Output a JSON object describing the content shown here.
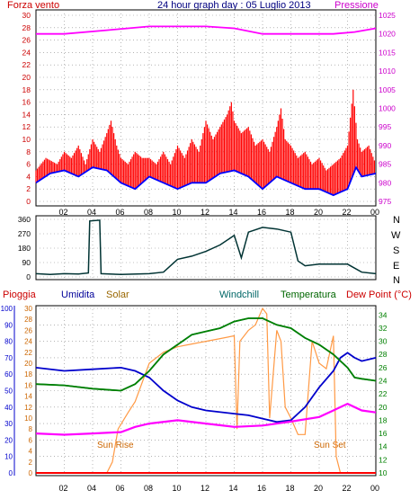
{
  "top_labels": {
    "left": "Forza vento",
    "title": "24 hour graph day : 05 Luglio 2013",
    "right": "Pressione"
  },
  "middle_labels": [
    "N",
    "W",
    "S",
    "E",
    "N"
  ],
  "bottom_legend": {
    "pioggia": "Pioggia",
    "umidita": "Umidita",
    "solar": "Solar",
    "windchill": "Windchill",
    "temperatura": "Temperatura",
    "dewpoint": "Dew Point (°C)"
  },
  "annotations": {
    "sunrise": "Sun Rise",
    "sunset": "Sun Set"
  },
  "colors": {
    "wind": "#ff0000",
    "gust_avg": "#0000ff",
    "pressure": "#ff00ff",
    "direction": "#003333",
    "humidity": "#0000cc",
    "solar": "#ff9944",
    "windchill": "#008080",
    "temperature": "#008000",
    "dewpoint": "#ff00ff",
    "rain": "#ff0000",
    "title": "#000080"
  },
  "chart_data": [
    {
      "type": "line",
      "name": "wind-pressure",
      "x_ticks": [
        "02",
        "04",
        "06",
        "08",
        "10",
        "12",
        "14",
        "16",
        "18",
        "20",
        "22",
        "00"
      ],
      "y_left_ticks": [
        0,
        2,
        4,
        6,
        8,
        10,
        12,
        14,
        16,
        18,
        20,
        22,
        24,
        26,
        28,
        30
      ],
      "y_right_ticks": [
        975,
        980,
        985,
        990,
        995,
        1000,
        1005,
        1010,
        1015,
        1020,
        1025
      ],
      "y_left_range": [
        0,
        30
      ],
      "y_right_range": [
        975,
        1025
      ],
      "pressure": [
        [
          0,
          1020
        ],
        [
          2,
          1020
        ],
        [
          5,
          1021
        ],
        [
          8,
          1022
        ],
        [
          12,
          1022
        ],
        [
          14,
          1021.5
        ],
        [
          16,
          1020
        ],
        [
          18,
          1020
        ],
        [
          21,
          1020
        ],
        [
          22.5,
          1020.5
        ],
        [
          24,
          1021.5
        ]
      ],
      "wind_avg": [
        [
          0,
          3
        ],
        [
          1,
          4.5
        ],
        [
          2,
          5
        ],
        [
          3,
          4
        ],
        [
          4,
          5.5
        ],
        [
          5,
          5
        ],
        [
          6,
          3
        ],
        [
          7,
          2
        ],
        [
          8,
          4
        ],
        [
          9,
          3
        ],
        [
          10,
          2
        ],
        [
          11,
          3
        ],
        [
          12,
          3
        ],
        [
          13,
          4.5
        ],
        [
          14,
          5
        ],
        [
          15,
          4
        ],
        [
          16,
          2
        ],
        [
          17,
          4
        ],
        [
          18,
          3
        ],
        [
          19,
          2
        ],
        [
          20,
          2
        ],
        [
          21,
          1
        ],
        [
          22,
          2
        ],
        [
          22.6,
          5.5
        ],
        [
          23,
          4
        ],
        [
          24,
          4.5
        ]
      ],
      "wind_gust": [
        [
          0,
          5
        ],
        [
          0.7,
          7
        ],
        [
          1.5,
          6
        ],
        [
          2,
          8
        ],
        [
          2.5,
          7
        ],
        [
          3,
          9
        ],
        [
          3.5,
          6
        ],
        [
          4,
          10
        ],
        [
          4.5,
          8
        ],
        [
          5,
          11
        ],
        [
          5.3,
          13
        ],
        [
          5.7,
          9
        ],
        [
          6,
          7
        ],
        [
          6.5,
          6
        ],
        [
          7,
          8
        ],
        [
          7.5,
          7
        ],
        [
          8,
          7
        ],
        [
          8.5,
          6
        ],
        [
          9,
          8
        ],
        [
          9.5,
          6
        ],
        [
          10,
          9
        ],
        [
          10.5,
          7
        ],
        [
          11,
          10
        ],
        [
          11.5,
          8
        ],
        [
          12,
          13
        ],
        [
          12.5,
          10
        ],
        [
          13,
          12
        ],
        [
          13.5,
          14
        ],
        [
          13.8,
          16
        ],
        [
          14,
          13
        ],
        [
          14.5,
          11
        ],
        [
          15,
          12
        ],
        [
          15.5,
          9
        ],
        [
          16,
          10
        ],
        [
          16.5,
          8
        ],
        [
          17,
          12
        ],
        [
          17.3,
          15
        ],
        [
          17.6,
          10
        ],
        [
          18,
          9
        ],
        [
          18.5,
          7
        ],
        [
          19,
          8
        ],
        [
          19.5,
          6
        ],
        [
          20,
          7
        ],
        [
          20.5,
          5
        ],
        [
          21,
          6
        ],
        [
          21.5,
          7
        ],
        [
          22,
          9
        ],
        [
          22.4,
          18
        ],
        [
          22.7,
          10
        ],
        [
          23,
          8
        ],
        [
          23.5,
          9
        ],
        [
          24,
          6
        ]
      ]
    },
    {
      "type": "line",
      "name": "wind-direction",
      "y_ticks": [
        0,
        90,
        180,
        270,
        360
      ],
      "y_range": [
        0,
        360
      ],
      "direction": [
        [
          0,
          20
        ],
        [
          1,
          15
        ],
        [
          2,
          20
        ],
        [
          3,
          18
        ],
        [
          3.7,
          25
        ],
        [
          3.8,
          350
        ],
        [
          4.5,
          355
        ],
        [
          4.6,
          20
        ],
        [
          6,
          15
        ],
        [
          8,
          20
        ],
        [
          9,
          30
        ],
        [
          10,
          110
        ],
        [
          11,
          130
        ],
        [
          12,
          160
        ],
        [
          13,
          200
        ],
        [
          14,
          260
        ],
        [
          14.5,
          120
        ],
        [
          15,
          280
        ],
        [
          16,
          310
        ],
        [
          17,
          300
        ],
        [
          18,
          280
        ],
        [
          18.5,
          100
        ],
        [
          19,
          70
        ],
        [
          20,
          80
        ],
        [
          22,
          80
        ],
        [
          23,
          30
        ],
        [
          24,
          20
        ]
      ]
    },
    {
      "type": "line",
      "name": "temperature-humidity",
      "y_left_ticks": [
        0,
        10,
        20,
        30,
        40,
        50,
        60,
        70,
        80,
        90,
        100
      ],
      "y_left2_ticks": [
        0,
        2,
        4,
        6,
        8,
        10,
        12,
        14,
        16,
        18,
        20,
        22,
        24,
        26,
        28,
        30
      ],
      "y_right_ticks": [
        10,
        12,
        14,
        16,
        18,
        20,
        22,
        24,
        26,
        28,
        30,
        32,
        34
      ],
      "humidity_range": [
        0,
        100
      ],
      "temp_range": [
        10,
        35
      ],
      "humidity": [
        [
          0,
          64
        ],
        [
          2,
          62
        ],
        [
          4,
          63
        ],
        [
          6,
          64
        ],
        [
          7,
          62
        ],
        [
          8,
          58
        ],
        [
          9,
          50
        ],
        [
          10,
          44
        ],
        [
          11,
          40
        ],
        [
          12,
          38
        ],
        [
          14,
          36
        ],
        [
          15,
          35
        ],
        [
          16,
          33
        ],
        [
          17,
          31
        ],
        [
          18,
          32
        ],
        [
          19,
          40
        ],
        [
          20,
          52
        ],
        [
          21,
          62
        ],
        [
          21.5,
          70
        ],
        [
          22,
          73
        ],
        [
          22.5,
          70
        ],
        [
          23,
          68
        ],
        [
          24,
          70
        ]
      ],
      "temperature": [
        [
          0,
          23.5
        ],
        [
          2,
          23.3
        ],
        [
          4,
          22.8
        ],
        [
          6,
          22.5
        ],
        [
          7,
          23.5
        ],
        [
          8,
          25.5
        ],
        [
          9,
          28
        ],
        [
          10,
          29.5
        ],
        [
          11,
          31
        ],
        [
          12,
          31.5
        ],
        [
          13,
          32
        ],
        [
          14,
          33
        ],
        [
          15,
          33.5
        ],
        [
          16,
          33.5
        ],
        [
          17,
          32.5
        ],
        [
          18,
          32
        ],
        [
          19,
          30.5
        ],
        [
          20,
          29.5
        ],
        [
          21,
          28
        ],
        [
          22,
          26
        ],
        [
          22.5,
          24.5
        ],
        [
          23,
          24.3
        ],
        [
          24,
          24
        ]
      ],
      "windchill": [
        [
          0,
          23.5
        ],
        [
          2,
          23.3
        ],
        [
          4,
          22.8
        ],
        [
          6,
          22.5
        ],
        [
          7,
          23.5
        ],
        [
          8,
          25.5
        ],
        [
          9,
          28
        ],
        [
          10,
          29.5
        ],
        [
          11,
          31
        ],
        [
          12,
          31.5
        ],
        [
          13,
          32
        ],
        [
          14,
          33
        ],
        [
          15,
          33.5
        ],
        [
          16,
          33.5
        ],
        [
          17,
          32.5
        ],
        [
          18,
          32
        ],
        [
          19,
          30.5
        ],
        [
          20,
          29.5
        ],
        [
          21,
          28
        ],
        [
          22,
          26
        ],
        [
          22.5,
          24.5
        ],
        [
          23,
          24.3
        ],
        [
          24,
          24
        ]
      ],
      "dewpoint": [
        [
          0,
          16
        ],
        [
          2,
          15.8
        ],
        [
          4,
          16
        ],
        [
          6,
          16.2
        ],
        [
          7,
          17
        ],
        [
          8,
          17.5
        ],
        [
          10,
          18
        ],
        [
          12,
          17.5
        ],
        [
          14,
          17
        ],
        [
          16,
          17.2
        ],
        [
          18,
          17.8
        ],
        [
          20,
          18.5
        ],
        [
          21,
          19.5
        ],
        [
          22,
          20.5
        ],
        [
          23,
          19.5
        ],
        [
          24,
          19.2
        ]
      ],
      "solar": [
        [
          0,
          0
        ],
        [
          5,
          0
        ],
        [
          5.4,
          2
        ],
        [
          5.8,
          8
        ],
        [
          6.5,
          11
        ],
        [
          7,
          13
        ],
        [
          8,
          20
        ],
        [
          9,
          22
        ],
        [
          10,
          23
        ],
        [
          11,
          23.5
        ],
        [
          12,
          24
        ],
        [
          13,
          24.5
        ],
        [
          14,
          25
        ],
        [
          14.2,
          8
        ],
        [
          14.4,
          24
        ],
        [
          15,
          26
        ],
        [
          15.5,
          27
        ],
        [
          16,
          30
        ],
        [
          16.3,
          29
        ],
        [
          16.5,
          10
        ],
        [
          17,
          26
        ],
        [
          17.3,
          24
        ],
        [
          17.6,
          12
        ],
        [
          18,
          10
        ],
        [
          18.5,
          7
        ],
        [
          19,
          7
        ],
        [
          19.5,
          24
        ],
        [
          20,
          20
        ],
        [
          20.5,
          19
        ],
        [
          21,
          25
        ],
        [
          21.2,
          3
        ],
        [
          21.5,
          0
        ],
        [
          24,
          0
        ]
      ],
      "rain": [
        [
          0,
          0
        ],
        [
          24,
          0
        ]
      ]
    }
  ]
}
